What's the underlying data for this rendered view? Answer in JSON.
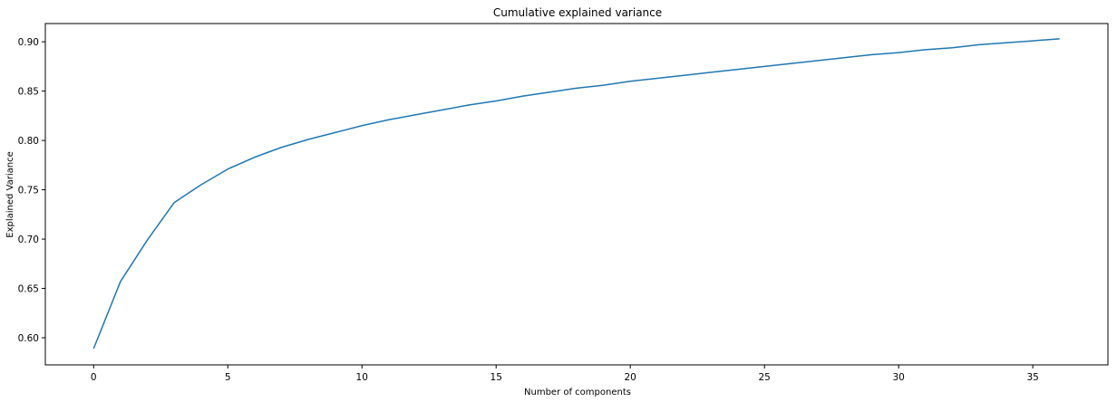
{
  "chart_data": {
    "type": "line",
    "title": "Cumulative explained variance",
    "xlabel": "Number of components",
    "ylabel": "Explained Variance",
    "xlim": [
      -1.8,
      37.8
    ],
    "ylim": [
      0.5725,
      0.9185
    ],
    "xticks": [
      0,
      5,
      10,
      15,
      20,
      25,
      30,
      35
    ],
    "xtick_labels": [
      "0",
      "5",
      "10",
      "15",
      "20",
      "25",
      "30",
      "35"
    ],
    "yticks": [
      0.6,
      0.65,
      0.7,
      0.75,
      0.8,
      0.85,
      0.9
    ],
    "ytick_labels": [
      "0.60",
      "0.65",
      "0.70",
      "0.75",
      "0.80",
      "0.85",
      "0.90"
    ],
    "grid": false,
    "legend": "none",
    "series": [
      {
        "color": "#1f77b4",
        "x": [
          0,
          1,
          2,
          3,
          4,
          5,
          6,
          7,
          8,
          9,
          10,
          11,
          12,
          13,
          14,
          15,
          16,
          17,
          18,
          19,
          20,
          21,
          22,
          23,
          24,
          25,
          26,
          27,
          28,
          29,
          30,
          31,
          32,
          33,
          34,
          35,
          36
        ],
        "y": [
          0.589,
          0.657,
          0.699,
          0.737,
          0.755,
          0.771,
          0.783,
          0.793,
          0.801,
          0.808,
          0.815,
          0.821,
          0.826,
          0.831,
          0.836,
          0.84,
          0.845,
          0.849,
          0.853,
          0.856,
          0.86,
          0.863,
          0.866,
          0.869,
          0.872,
          0.875,
          0.878,
          0.881,
          0.884,
          0.887,
          0.889,
          0.892,
          0.894,
          0.897,
          0.899,
          0.901,
          0.903
        ]
      }
    ]
  }
}
